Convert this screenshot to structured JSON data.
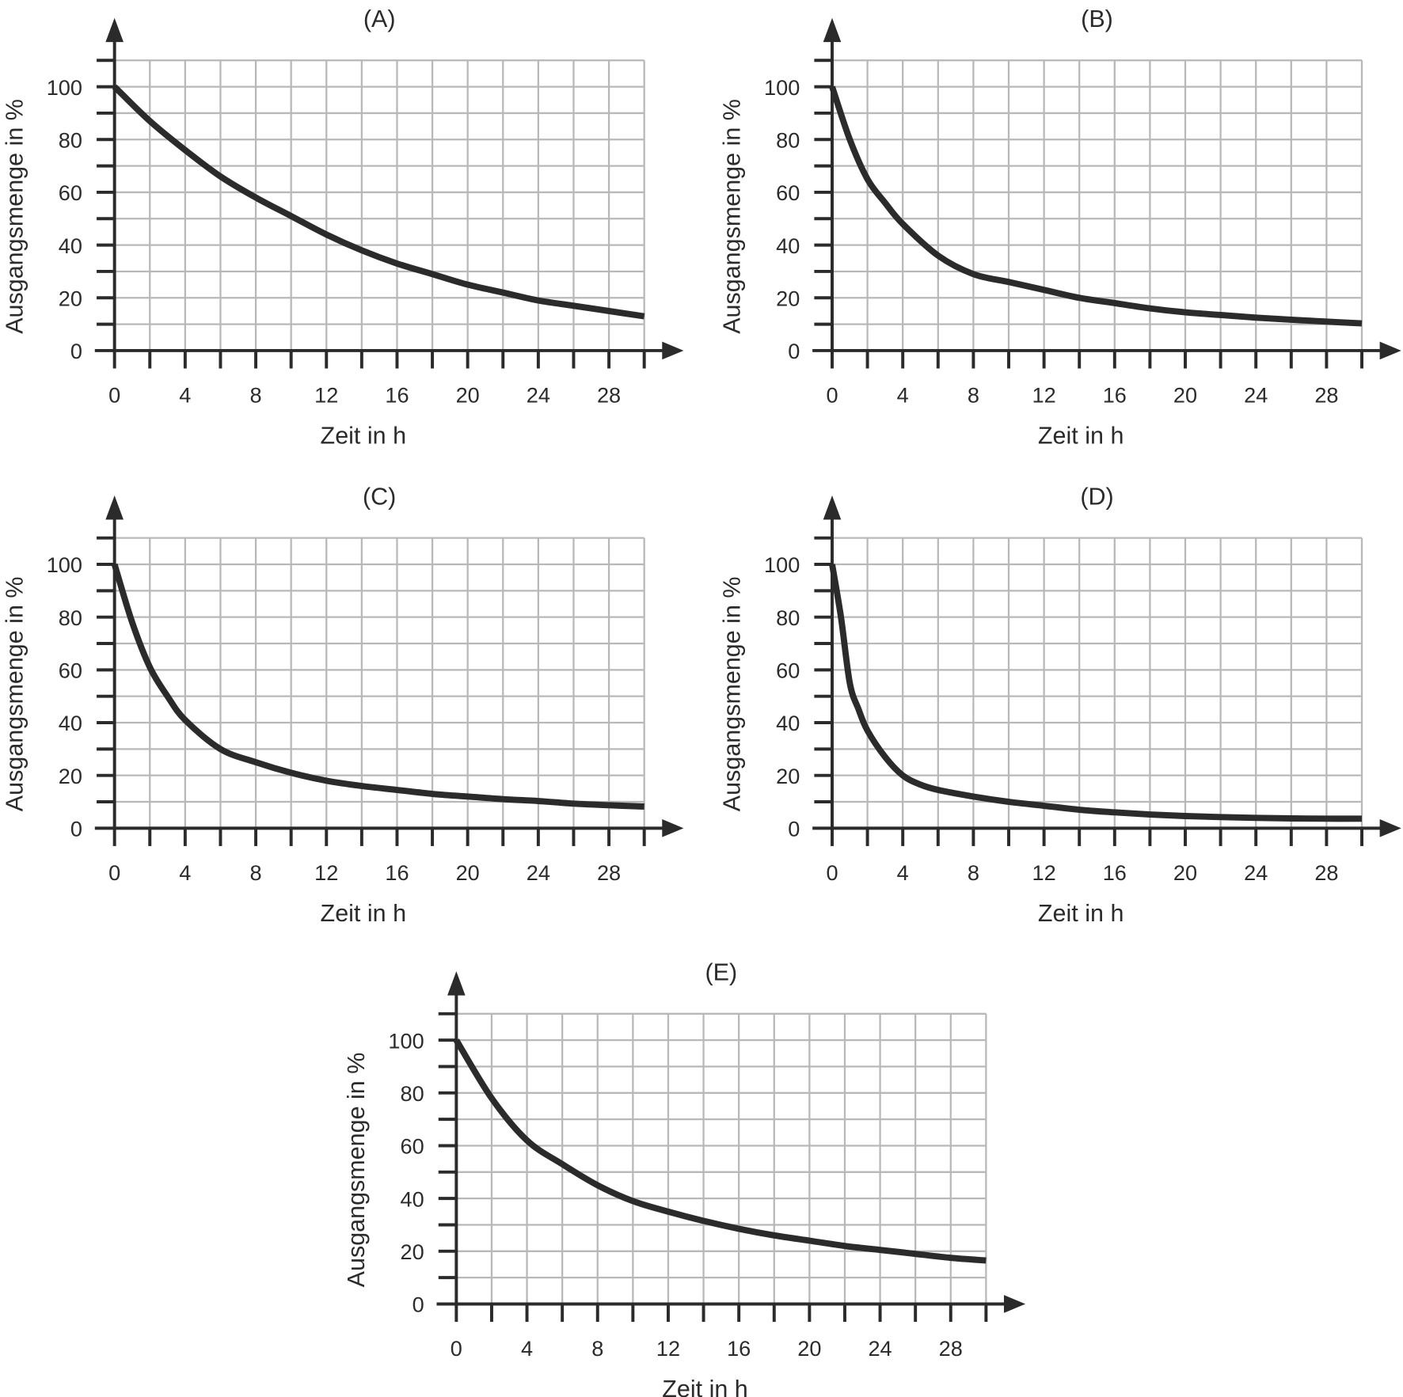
{
  "colors": {
    "curve": "#2b2b2b",
    "axis": "#2b2b2b",
    "grid": "#b8b8b8"
  },
  "chart_data": [
    {
      "type": "line",
      "title": "(A)",
      "xlabel": "Zeit in h",
      "ylabel": "Ausgangsmenge in %",
      "xlim": [
        0,
        30
      ],
      "ylim": [
        0,
        110
      ],
      "grid": true,
      "xticks": [
        "0",
        "4",
        "8",
        "12",
        "16",
        "20",
        "24",
        "28"
      ],
      "yticks": [
        "0",
        "20",
        "40",
        "60",
        "80",
        "100"
      ],
      "x": [
        0,
        2,
        4,
        6,
        8,
        10,
        12,
        14,
        16,
        18,
        20,
        22,
        24,
        26,
        28,
        30
      ],
      "y": [
        100,
        87,
        76,
        66,
        58,
        51,
        44,
        38,
        33,
        29,
        25,
        22,
        19,
        17,
        15,
        13
      ]
    },
    {
      "type": "line",
      "title": "(B)",
      "xlabel": "Zeit in h",
      "ylabel": "Ausgangsmenge in %",
      "xlim": [
        0,
        30
      ],
      "ylim": [
        0,
        110
      ],
      "grid": true,
      "xticks": [
        "0",
        "4",
        "8",
        "12",
        "16",
        "20",
        "24",
        "28"
      ],
      "yticks": [
        "0",
        "20",
        "40",
        "60",
        "80",
        "100"
      ],
      "x": [
        0,
        1,
        2,
        3,
        4,
        6,
        8,
        10,
        12,
        14,
        16,
        18,
        20,
        22,
        24,
        26,
        28,
        30
      ],
      "y": [
        100,
        80,
        65,
        56,
        48,
        36,
        29,
        26,
        23,
        20,
        18,
        16,
        14.5,
        13.5,
        12.5,
        11.7,
        11,
        10.3
      ]
    },
    {
      "type": "line",
      "title": "(C)",
      "xlabel": "Zeit in h",
      "ylabel": "Ausgangsmenge in %",
      "xlim": [
        0,
        30
      ],
      "ylim": [
        0,
        110
      ],
      "grid": true,
      "xticks": [
        "0",
        "4",
        "8",
        "12",
        "16",
        "20",
        "24",
        "28"
      ],
      "yticks": [
        "0",
        "20",
        "40",
        "60",
        "80",
        "100"
      ],
      "x": [
        0,
        1,
        2,
        3,
        4,
        6,
        8,
        10,
        12,
        14,
        16,
        18,
        20,
        22,
        24,
        26,
        28,
        30
      ],
      "y": [
        100,
        78,
        61,
        50,
        41,
        30,
        25,
        21,
        18,
        16,
        14.5,
        13,
        12,
        11,
        10.3,
        9.3,
        8.7,
        8.2
      ]
    },
    {
      "type": "line",
      "title": "(D)",
      "xlabel": "Zeit in h",
      "ylabel": "Ausgangsmenge in %",
      "xlim": [
        0,
        30
      ],
      "ylim": [
        0,
        110
      ],
      "grid": true,
      "xticks": [
        "0",
        "4",
        "8",
        "12",
        "16",
        "20",
        "24",
        "28"
      ],
      "yticks": [
        "0",
        "20",
        "40",
        "60",
        "80",
        "100"
      ],
      "x": [
        0,
        0.5,
        1,
        1.5,
        2,
        3,
        4,
        5,
        6,
        8,
        10,
        12,
        14,
        16,
        18,
        20,
        22,
        24,
        26,
        28,
        30
      ],
      "y": [
        100,
        80,
        55,
        45,
        37,
        27,
        20,
        16.5,
        14.5,
        12,
        10,
        8.5,
        7,
        6,
        5.2,
        4.6,
        4.2,
        3.9,
        3.7,
        3.6,
        3.6
      ]
    },
    {
      "type": "line",
      "title": "(E)",
      "xlabel": "Zeit in h",
      "ylabel": "Ausgangsmenge in %",
      "xlim": [
        0,
        30
      ],
      "ylim": [
        0,
        110
      ],
      "grid": true,
      "xticks": [
        "0",
        "4",
        "8",
        "12",
        "16",
        "20",
        "24",
        "28"
      ],
      "yticks": [
        "0",
        "20",
        "40",
        "60",
        "80",
        "100"
      ],
      "x": [
        0,
        2,
        4,
        6,
        8,
        10,
        12,
        14,
        16,
        18,
        20,
        22,
        24,
        26,
        28,
        30
      ],
      "y": [
        100,
        78,
        62,
        53,
        45,
        39,
        35,
        31.5,
        28.5,
        26,
        24,
        22,
        20.5,
        19,
        17.5,
        16.5
      ]
    }
  ]
}
